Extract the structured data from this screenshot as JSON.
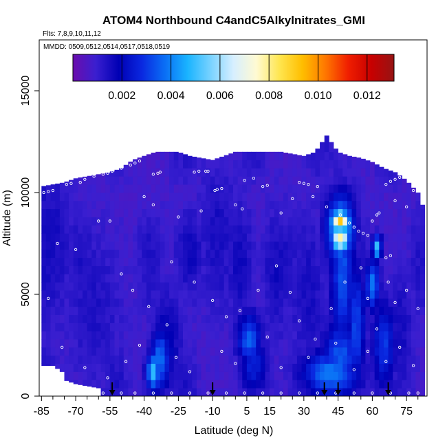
{
  "chart_data": {
    "type": "heatmap",
    "title": "ATOM4 Northbound C4andC5Alkylnitrates_GMI",
    "flights_text": "Flts: 7,8,9,10,11,12",
    "dates_text": "MMDD: 0509,0512,0514,0517,0518,0519",
    "xlabel": "Latitude (deg N)",
    "ylabel": "Altitude (m)",
    "xlim": [
      -86,
      84
    ],
    "ylim": [
      0,
      17500
    ],
    "x_ticks": [
      -85,
      -70,
      -55,
      -40,
      -25,
      -10,
      5,
      15,
      30,
      45,
      60,
      75
    ],
    "x_minor_ticks": [
      -80,
      -75,
      -65,
      -60,
      -50,
      -45,
      -35,
      -30,
      -20,
      -15,
      -5,
      0,
      10,
      20,
      25,
      35,
      40,
      50,
      55,
      65,
      70,
      80
    ],
    "y_ticks": [
      0,
      5000,
      10000,
      15000
    ],
    "colorbar": {
      "min": 0,
      "max": 0.0131,
      "ticks": [
        0.002,
        0.004,
        0.006,
        0.008,
        0.01,
        0.012
      ],
      "tick_labels": [
        "0.002",
        "0.004",
        "0.006",
        "0.008",
        "0.010",
        "0.012"
      ],
      "colors": [
        "#6a0dad",
        "#3a1fd0",
        "#0000b4",
        "#0a28e0",
        "#0a6ef5",
        "#1ab4ff",
        "#78d2ff",
        "#d7efff",
        "#fffad2",
        "#ffe650",
        "#ffbe00",
        "#ff7800",
        "#f01e00",
        "#c80000",
        "#961414"
      ]
    },
    "arrow_latitudes": [
      -54,
      -10,
      39,
      45,
      67
    ],
    "max_altitude_profile": {
      "lat": [
        -85,
        -80,
        -75,
        -70,
        -65,
        -60,
        -55,
        -50,
        -45,
        -40,
        -35,
        -30,
        -25,
        -20,
        -15,
        -10,
        -5,
        0,
        5,
        10,
        15,
        20,
        25,
        30,
        35,
        40,
        45,
        50,
        55,
        60,
        65,
        70,
        75,
        80,
        82
      ],
      "alt": [
        10300,
        10400,
        10500,
        10700,
        10800,
        10900,
        11000,
        11200,
        11600,
        11800,
        12000,
        12000,
        12000,
        11800,
        11700,
        11600,
        11800,
        12000,
        12000,
        12000,
        12000,
        12000,
        11900,
        11800,
        12000,
        12800,
        12000,
        11800,
        11700,
        11500,
        11200,
        11000,
        10600,
        10000,
        9400
      ]
    },
    "min_altitude_profile": {
      "lat": [
        -85,
        -80,
        -76,
        -75,
        -70,
        -60,
        -58
      ],
      "alt": [
        1500,
        1500,
        1200,
        800,
        600,
        400,
        0
      ]
    },
    "field": {
      "background_value": 0.0008,
      "features": [
        {
          "lat": -82,
          "alt": 7500,
          "wlat": 10,
          "walt": 4000,
          "value": 0.0016
        },
        {
          "lat": -62,
          "alt": 4500,
          "wlat": 12,
          "walt": 3500,
          "value": 0.0014
        },
        {
          "lat": -36,
          "alt": 1200,
          "wlat": 3,
          "walt": 900,
          "value": 0.005
        },
        {
          "lat": -33,
          "alt": 1800,
          "wlat": 4,
          "walt": 1500,
          "value": 0.0038
        },
        {
          "lat": -30,
          "alt": 2500,
          "wlat": 6,
          "walt": 2500,
          "value": 0.002
        },
        {
          "lat": -20,
          "alt": 7000,
          "wlat": 6,
          "walt": 2000,
          "value": 0.0017
        },
        {
          "lat": -8,
          "alt": 8000,
          "wlat": 8,
          "walt": 3500,
          "value": 0.0015
        },
        {
          "lat": 6,
          "alt": 2800,
          "wlat": 5,
          "walt": 1200,
          "value": 0.0036
        },
        {
          "lat": 8,
          "alt": 1500,
          "wlat": 6,
          "walt": 1300,
          "value": 0.0026
        },
        {
          "lat": 2,
          "alt": 6500,
          "wlat": 6,
          "walt": 3000,
          "value": 0.0016
        },
        {
          "lat": 18,
          "alt": 6000,
          "wlat": 6,
          "walt": 3000,
          "value": 0.0016
        },
        {
          "lat": 32,
          "alt": 5000,
          "wlat": 8,
          "walt": 4000,
          "value": 0.0015
        },
        {
          "lat": 42,
          "alt": 1100,
          "wlat": 12,
          "walt": 1100,
          "value": 0.004
        },
        {
          "lat": 46,
          "alt": 2000,
          "wlat": 8,
          "walt": 1600,
          "value": 0.0034
        },
        {
          "lat": 46,
          "alt": 8600,
          "wlat": 4,
          "walt": 500,
          "value": 0.009
        },
        {
          "lat": 46,
          "alt": 7700,
          "wlat": 4,
          "walt": 500,
          "value": 0.0082
        },
        {
          "lat": 46,
          "alt": 8200,
          "wlat": 6,
          "walt": 1600,
          "value": 0.0052
        },
        {
          "lat": 47,
          "alt": 6000,
          "wlat": 5,
          "walt": 3500,
          "value": 0.0034
        },
        {
          "lat": 53,
          "alt": 3500,
          "wlat": 4,
          "walt": 3000,
          "value": 0.0032
        },
        {
          "lat": 60,
          "alt": 5500,
          "wlat": 3,
          "walt": 1200,
          "value": 0.004
        },
        {
          "lat": 62,
          "alt": 7300,
          "wlat": 2,
          "walt": 600,
          "value": 0.005
        },
        {
          "lat": 65,
          "alt": 2500,
          "wlat": 5,
          "walt": 2000,
          "value": 0.003
        },
        {
          "lat": 72,
          "alt": 3000,
          "wlat": 6,
          "walt": 3000,
          "value": 0.0016
        }
      ]
    },
    "flight_track": [
      {
        "lat": -84,
        "alt": 10000
      },
      {
        "lat": -82,
        "alt": 10050
      },
      {
        "lat": -80,
        "alt": 10100
      },
      {
        "lat": -74,
        "alt": 10400
      },
      {
        "lat": -72,
        "alt": 10450
      },
      {
        "lat": -68,
        "alt": 10500
      },
      {
        "lat": -66,
        "alt": 10650
      },
      {
        "lat": -62,
        "alt": 10800
      },
      {
        "lat": -58,
        "alt": 10900
      },
      {
        "lat": -56,
        "alt": 10950
      },
      {
        "lat": -54,
        "alt": 11050
      },
      {
        "lat": -50,
        "alt": 11200
      },
      {
        "lat": -46,
        "alt": 11350
      },
      {
        "lat": -44,
        "alt": 11450
      },
      {
        "lat": -42,
        "alt": 11550
      },
      {
        "lat": -36,
        "alt": 10900
      },
      {
        "lat": -34,
        "alt": 10950
      },
      {
        "lat": -33,
        "alt": 11000
      },
      {
        "lat": -18,
        "alt": 11000
      },
      {
        "lat": -16,
        "alt": 11050
      },
      {
        "lat": -13,
        "alt": 11050
      },
      {
        "lat": -12,
        "alt": 11050
      },
      {
        "lat": -9,
        "alt": 10100
      },
      {
        "lat": -8,
        "alt": 10150
      },
      {
        "lat": -6,
        "alt": 10200
      },
      {
        "lat": 4,
        "alt": 10600
      },
      {
        "lat": 8,
        "alt": 10700
      },
      {
        "lat": 12,
        "alt": 10300
      },
      {
        "lat": 14,
        "alt": 10350
      },
      {
        "lat": 28,
        "alt": 10500
      },
      {
        "lat": 30,
        "alt": 10450
      },
      {
        "lat": 32,
        "alt": 10400
      },
      {
        "lat": 36,
        "alt": 10300
      },
      {
        "lat": 46,
        "alt": 8900
      },
      {
        "lat": 48,
        "alt": 8700
      },
      {
        "lat": 50,
        "alt": 8500
      },
      {
        "lat": 52,
        "alt": 8300
      },
      {
        "lat": 54,
        "alt": 8100
      },
      {
        "lat": 56,
        "alt": 8000
      },
      {
        "lat": 58,
        "alt": 7900
      },
      {
        "lat": 60,
        "alt": 8600
      },
      {
        "lat": 62,
        "alt": 8900
      },
      {
        "lat": 63,
        "alt": 9000
      },
      {
        "lat": 66,
        "alt": 10400
      },
      {
        "lat": 68,
        "alt": 10550
      },
      {
        "lat": 70,
        "alt": 10650
      },
      {
        "lat": 72,
        "alt": 10750
      },
      {
        "lat": 74,
        "alt": 10800
      },
      {
        "lat": 78,
        "alt": 10100
      },
      {
        "lat": -60,
        "alt": 8600
      },
      {
        "lat": -55,
        "alt": 8600
      },
      {
        "lat": -40,
        "alt": 9800
      },
      {
        "lat": -36,
        "alt": 9400
      },
      {
        "lat": -25,
        "alt": 8800
      },
      {
        "lat": -15,
        "alt": 9100
      },
      {
        "lat": 0,
        "alt": 9400
      },
      {
        "lat": 3,
        "alt": 9200
      },
      {
        "lat": 20,
        "alt": 9000
      },
      {
        "lat": 25,
        "alt": 9700
      },
      {
        "lat": 34,
        "alt": 9800
      },
      {
        "lat": 40,
        "alt": 9300
      },
      {
        "lat": 70,
        "alt": 9600
      },
      {
        "lat": 75,
        "alt": 9300
      },
      {
        "lat": -78,
        "alt": 7500
      },
      {
        "lat": -70,
        "alt": 7200
      },
      {
        "lat": -50,
        "alt": 6000
      },
      {
        "lat": -45,
        "alt": 5200
      },
      {
        "lat": -38,
        "alt": 4400
      },
      {
        "lat": -30,
        "alt": 3500
      },
      {
        "lat": -28,
        "alt": 6600
      },
      {
        "lat": -18,
        "alt": 5600
      },
      {
        "lat": -10,
        "alt": 4700
      },
      {
        "lat": -4,
        "alt": 3900
      },
      {
        "lat": 2,
        "alt": 4200
      },
      {
        "lat": 10,
        "alt": 5200
      },
      {
        "lat": 18,
        "alt": 6400
      },
      {
        "lat": 24,
        "alt": 5100
      },
      {
        "lat": 28,
        "alt": 3700
      },
      {
        "lat": 35,
        "alt": 2800
      },
      {
        "lat": 42,
        "alt": 4300
      },
      {
        "lat": 48,
        "alt": 5600
      },
      {
        "lat": 55,
        "alt": 6300
      },
      {
        "lat": 58,
        "alt": 4800
      },
      {
        "lat": 62,
        "alt": 3300
      },
      {
        "lat": 68,
        "alt": 6900
      },
      {
        "lat": 75,
        "alt": 5200
      },
      {
        "lat": 80,
        "alt": 4300
      },
      {
        "lat": -82,
        "alt": 4800
      },
      {
        "lat": -76,
        "alt": 2400
      },
      {
        "lat": -66,
        "alt": 1400
      },
      {
        "lat": -56,
        "alt": 900
      },
      {
        "lat": -48,
        "alt": 1700
      },
      {
        "lat": -42,
        "alt": 2500
      },
      {
        "lat": -26,
        "alt": 1900
      },
      {
        "lat": -20,
        "alt": 1200
      },
      {
        "lat": -6,
        "alt": 2200
      },
      {
        "lat": 0,
        "alt": 1600
      },
      {
        "lat": 14,
        "alt": 2900
      },
      {
        "lat": 20,
        "alt": 1400
      },
      {
        "lat": 32,
        "alt": 1900
      },
      {
        "lat": 44,
        "alt": 2600
      },
      {
        "lat": 52,
        "alt": 1300
      },
      {
        "lat": 58,
        "alt": 2200
      },
      {
        "lat": 66,
        "alt": 1700
      },
      {
        "lat": 72,
        "alt": 2400
      },
      {
        "lat": 78,
        "alt": 1500
      },
      {
        "lat": -58,
        "alt": 150
      },
      {
        "lat": -50,
        "alt": 150
      },
      {
        "lat": -44,
        "alt": 150
      },
      {
        "lat": -36,
        "alt": 150
      },
      {
        "lat": -28,
        "alt": 150
      },
      {
        "lat": -20,
        "alt": 150
      },
      {
        "lat": -12,
        "alt": 150
      },
      {
        "lat": -4,
        "alt": 150
      },
      {
        "lat": 4,
        "alt": 150
      },
      {
        "lat": 12,
        "alt": 150
      },
      {
        "lat": 20,
        "alt": 150
      },
      {
        "lat": 28,
        "alt": 150
      },
      {
        "lat": 36,
        "alt": 150
      },
      {
        "lat": 44,
        "alt": 150
      },
      {
        "lat": 52,
        "alt": 150
      },
      {
        "lat": 60,
        "alt": 150
      },
      {
        "lat": 68,
        "alt": 150
      },
      {
        "lat": 76,
        "alt": 150
      },
      {
        "lat": 80,
        "alt": 150
      },
      {
        "lat": 66,
        "alt": 6800
      },
      {
        "lat": 67,
        "alt": 5600
      },
      {
        "lat": 70,
        "alt": 4600
      }
    ]
  }
}
